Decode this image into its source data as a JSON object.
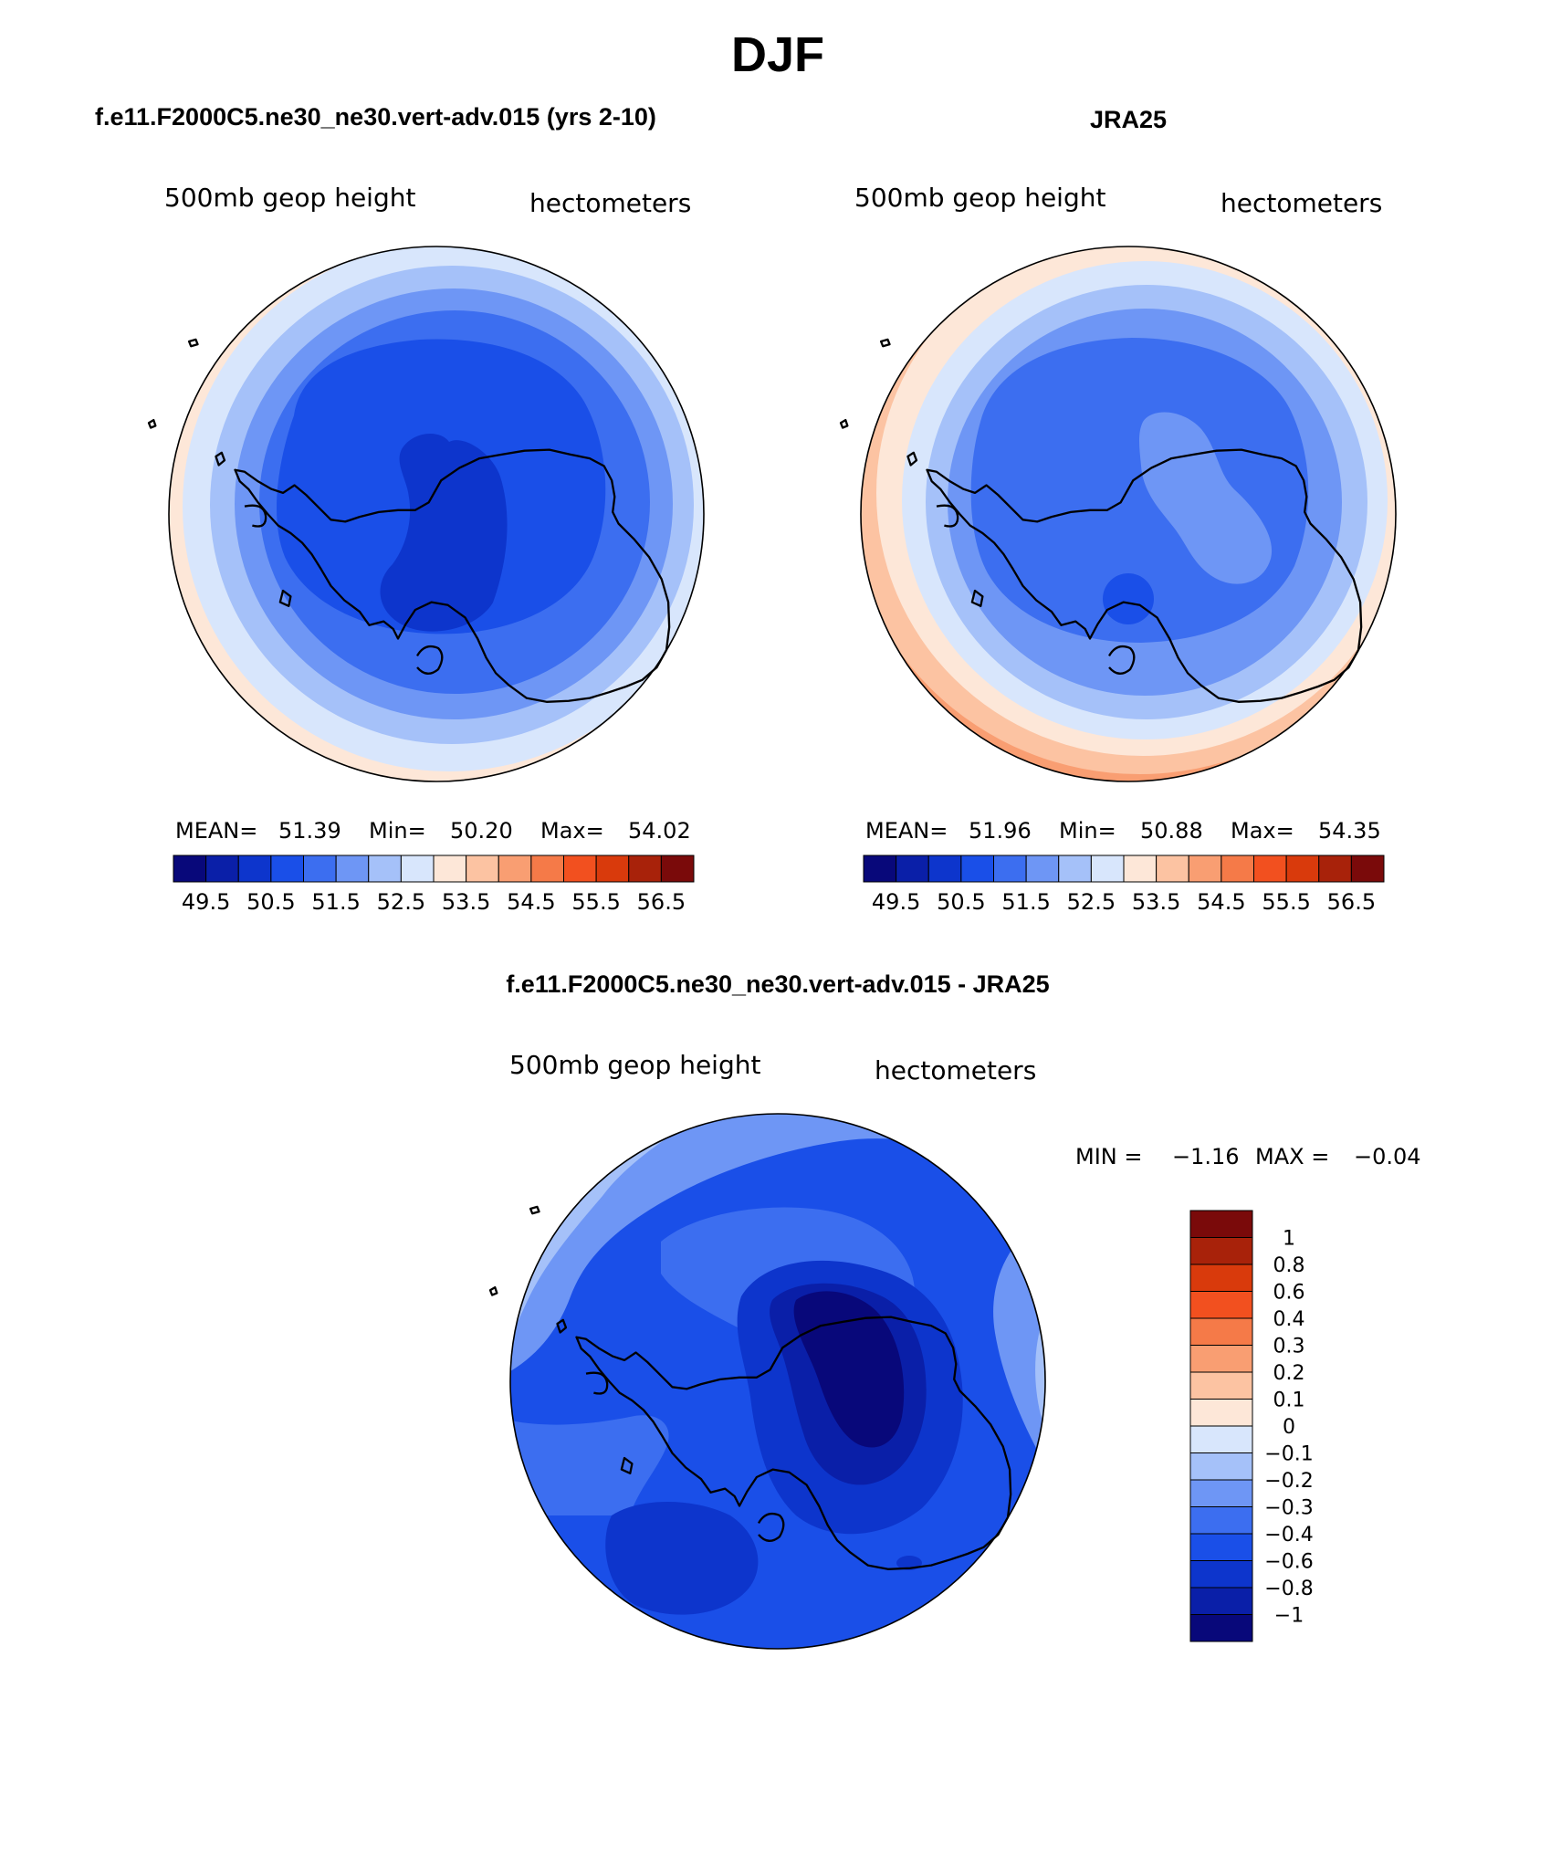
{
  "title": "DJF",
  "panels": [
    {
      "id": "model",
      "heading": "f.e11.F2000C5.ne30_ne30.vert-adv.015 (yrs 2-10)",
      "variable": "500mb geop height",
      "units": "hectometers",
      "stats": {
        "mean_label": "MEAN=",
        "mean": "51.39",
        "min_label": "Min=",
        "min": "50.20",
        "max_label": "Max=",
        "max": "54.02"
      }
    },
    {
      "id": "obs",
      "heading": "JRA25",
      "variable": "500mb geop height",
      "units": "hectometers",
      "stats": {
        "mean_label": "MEAN=",
        "mean": "51.96",
        "min_label": "Min=",
        "min": "50.88",
        "max_label": "Max=",
        "max": "54.35"
      }
    },
    {
      "id": "diff",
      "heading": "f.e11.F2000C5.ne30_ne30.vert-adv.015 - JRA25",
      "variable": "500mb geop height",
      "units": "hectometers",
      "stats": {
        "min_label": "MIN =",
        "min": "−1.16",
        "max_label": "MAX =",
        "max": "−0.04"
      }
    }
  ],
  "colorbar_abs": {
    "tick_labels": [
      "49.5",
      "50.5",
      "51.5",
      "52.5",
      "53.5",
      "54.5",
      "55.5",
      "56.5"
    ],
    "colors": [
      "#08087a",
      "#0a1fa8",
      "#0d35cc",
      "#1a4fe8",
      "#3c6ef0",
      "#6e96f5",
      "#a5c1f9",
      "#d8e6fc",
      "#fde7d8",
      "#fcc3a2",
      "#f99e72",
      "#f57a48",
      "#f2501f",
      "#d93a0c",
      "#a8220a",
      "#7a0a0a"
    ]
  },
  "colorbar_diff": {
    "tick_labels": [
      "1",
      "0.8",
      "0.6",
      "0.4",
      "0.3",
      "0.2",
      "0.1",
      "0",
      "−0.1",
      "−0.2",
      "−0.3",
      "−0.4",
      "−0.6",
      "−0.8",
      "−1"
    ],
    "colors": [
      "#7a0a0a",
      "#a8220a",
      "#d93a0c",
      "#f2501f",
      "#f57a48",
      "#f99e72",
      "#fcc3a2",
      "#fde7d8",
      "#d8e6fc",
      "#a5c1f9",
      "#6e96f5",
      "#3c6ef0",
      "#1a4fe8",
      "#0d35cc",
      "#0a1fa8",
      "#08087a"
    ]
  }
}
